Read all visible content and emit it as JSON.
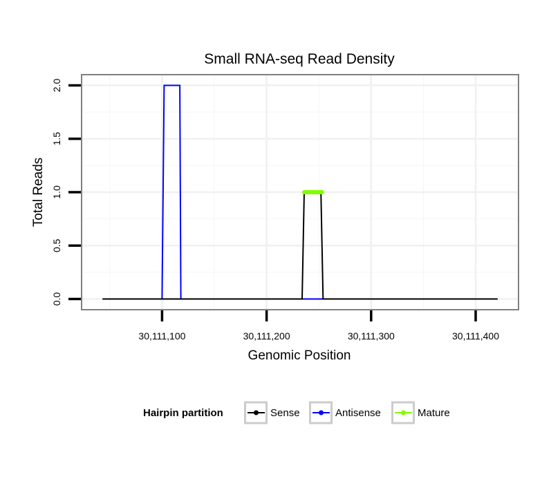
{
  "chart_data": {
    "type": "line",
    "title": "Small RNA-seq Read Density",
    "xlabel": "Genomic Position",
    "ylabel": "Total Reads",
    "xlim": [
      30111023,
      30111441
    ],
    "ylim": [
      -0.1,
      2.1
    ],
    "x_ticks": [
      30111100,
      30111200,
      30111300,
      30111400
    ],
    "x_tick_labels": [
      "30,111,100",
      "30,111,200",
      "30,111,300",
      "30,111,400"
    ],
    "y_ticks": [
      0.0,
      0.5,
      1.0,
      1.5,
      2.0
    ],
    "y_tick_labels": [
      "0.0",
      "0.5",
      "1.0",
      "1.5",
      "2.0"
    ],
    "grid": true,
    "legend": {
      "title": "Hairpin partition",
      "position": "bottom",
      "entries": [
        "Sense",
        "Antisense",
        "Mature"
      ]
    },
    "series": [
      {
        "name": "Sense",
        "color": "#000000",
        "x": [
          30111043,
          30111234,
          30111236,
          30111252,
          30111254,
          30111421
        ],
        "y": [
          0,
          0,
          1,
          1,
          0,
          0
        ]
      },
      {
        "name": "Antisense",
        "color": "#0000ff",
        "x": [
          30111100,
          30111102,
          30111117,
          30111118,
          30111235,
          30111254
        ],
        "y": [
          0,
          2,
          2,
          0,
          0,
          0
        ]
      },
      {
        "name": "Mature",
        "color": "#7fff00",
        "x": [
          30111236,
          30111253
        ],
        "y": [
          1,
          1
        ]
      }
    ]
  }
}
